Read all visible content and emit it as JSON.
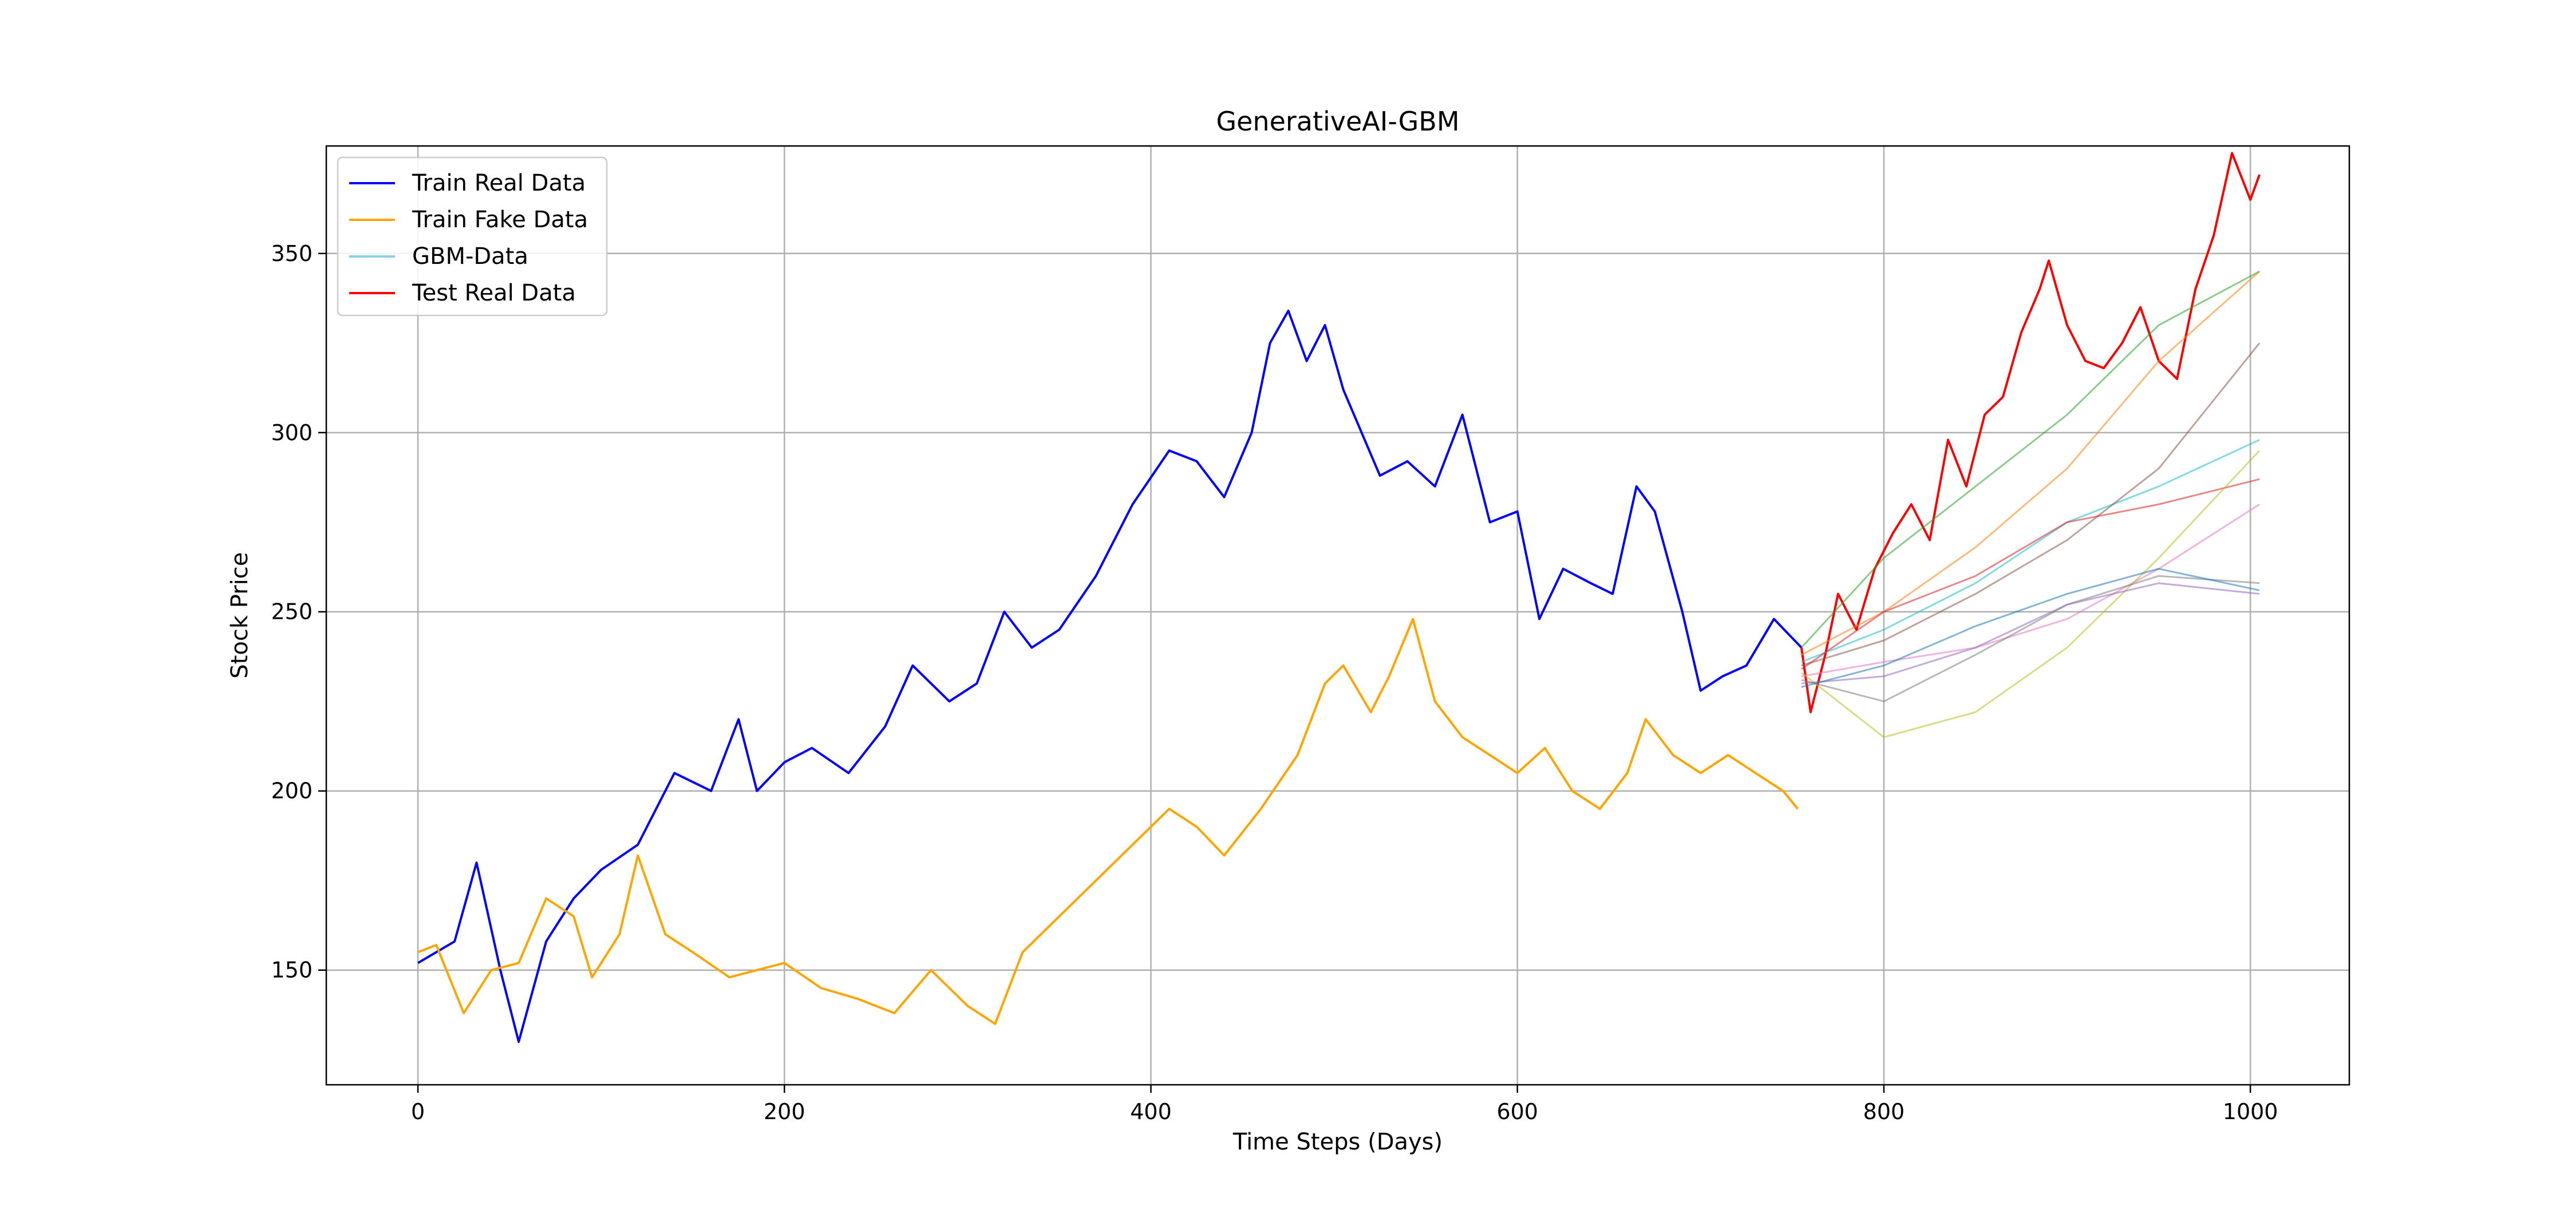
{
  "chart_data": {
    "type": "line",
    "title": "GenerativeAI-GBM",
    "xlabel": "Time Steps (Days)",
    "ylabel": "Stock Price",
    "xlim": [
      -50,
      1054
    ],
    "ylim": [
      118,
      380
    ],
    "xticks": [
      0,
      200,
      400,
      600,
      800,
      1000
    ],
    "yticks": [
      150,
      200,
      250,
      300,
      350
    ],
    "grid": true,
    "legend_position": "top-left",
    "legend": [
      {
        "label": "Train Real Data",
        "color": "#0000ff"
      },
      {
        "label": "Train Fake Data",
        "color": "#ffa500"
      },
      {
        "label": "GBM-Data",
        "color": "#87ceeb"
      },
      {
        "label": "Test Real Data",
        "color": "#ff0000"
      }
    ],
    "series": [
      {
        "name": "Train Real Data",
        "color": "#0000ff",
        "x": [
          0,
          20,
          32,
          45,
          55,
          70,
          85,
          100,
          120,
          140,
          160,
          175,
          185,
          200,
          215,
          235,
          255,
          270,
          290,
          305,
          320,
          335,
          350,
          370,
          390,
          410,
          425,
          440,
          455,
          465,
          475,
          485,
          495,
          505,
          515,
          525,
          540,
          555,
          570,
          585,
          600,
          612,
          625,
          640,
          652,
          665,
          675,
          690,
          700,
          712,
          725,
          740,
          755
        ],
        "y": [
          152,
          158,
          180,
          150,
          130,
          158,
          170,
          178,
          185,
          205,
          200,
          220,
          200,
          208,
          212,
          205,
          218,
          235,
          225,
          230,
          250,
          240,
          245,
          260,
          280,
          295,
          292,
          282,
          300,
          325,
          334,
          320,
          330,
          312,
          300,
          288,
          292,
          285,
          305,
          275,
          278,
          248,
          262,
          258,
          255,
          285,
          278,
          250,
          228,
          232,
          235,
          248,
          240
        ]
      },
      {
        "name": "Train Fake Data",
        "color": "#ffa500",
        "x": [
          0,
          10,
          25,
          40,
          55,
          70,
          85,
          95,
          110,
          120,
          135,
          150,
          170,
          185,
          200,
          220,
          240,
          260,
          280,
          300,
          315,
          330,
          350,
          370,
          390,
          410,
          425,
          440,
          460,
          480,
          495,
          505,
          520,
          530,
          543,
          555,
          570,
          585,
          600,
          615,
          630,
          645,
          660,
          670,
          685,
          700,
          715,
          730,
          745,
          753
        ],
        "y": [
          155,
          157,
          138,
          150,
          152,
          170,
          165,
          148,
          160,
          182,
          160,
          155,
          148,
          150,
          152,
          145,
          142,
          138,
          150,
          140,
          135,
          155,
          165,
          175,
          185,
          195,
          190,
          182,
          195,
          210,
          230,
          235,
          222,
          232,
          248,
          225,
          215,
          210,
          205,
          212,
          200,
          195,
          205,
          220,
          210,
          205,
          210,
          205,
          200,
          195
        ]
      },
      {
        "name": "Test Real Data",
        "color": "#ff0000",
        "x": [
          755,
          760,
          768,
          775,
          785,
          795,
          805,
          815,
          825,
          835,
          845,
          855,
          865,
          875,
          885,
          890,
          900,
          910,
          920,
          930,
          940,
          950,
          960,
          970,
          980,
          990,
          1000,
          1005
        ],
        "y": [
          240,
          222,
          238,
          255,
          245,
          262,
          272,
          280,
          270,
          298,
          285,
          305,
          310,
          328,
          340,
          348,
          330,
          320,
          318,
          325,
          335,
          320,
          315,
          340,
          355,
          378,
          365,
          372
        ]
      },
      {
        "name": "GBM-Data 1",
        "color": "#2ca02c",
        "x": [
          755,
          800,
          850,
          900,
          950,
          1005
        ],
        "y": [
          240,
          265,
          285,
          305,
          330,
          345
        ]
      },
      {
        "name": "GBM-Data 2",
        "color": "#ff7f0e",
        "x": [
          755,
          800,
          850,
          900,
          950,
          1005
        ],
        "y": [
          238,
          250,
          268,
          290,
          320,
          345
        ]
      },
      {
        "name": "GBM-Data 3",
        "color": "#17becf",
        "x": [
          755,
          800,
          850,
          900,
          950,
          1005
        ],
        "y": [
          236,
          245,
          258,
          275,
          285,
          298
        ]
      },
      {
        "name": "GBM-Data 4",
        "color": "#8c564b",
        "x": [
          755,
          800,
          850,
          900,
          950,
          1005
        ],
        "y": [
          235,
          242,
          255,
          270,
          290,
          325
        ]
      },
      {
        "name": "GBM-Data 5",
        "color": "#d62728",
        "x": [
          755,
          800,
          850,
          900,
          950,
          1005
        ],
        "y": [
          234,
          250,
          260,
          275,
          280,
          287
        ]
      },
      {
        "name": "GBM-Data 6",
        "color": "#bcbd22",
        "x": [
          755,
          800,
          850,
          900,
          950,
          1005
        ],
        "y": [
          233,
          215,
          222,
          240,
          265,
          295
        ]
      },
      {
        "name": "GBM-Data 7",
        "color": "#e377c2",
        "x": [
          755,
          800,
          850,
          900,
          950,
          1005
        ],
        "y": [
          232,
          236,
          240,
          248,
          262,
          280
        ]
      },
      {
        "name": "GBM-Data 8",
        "color": "#7f7f7f",
        "x": [
          755,
          800,
          850,
          900,
          950,
          1005
        ],
        "y": [
          231,
          225,
          238,
          252,
          260,
          258
        ]
      },
      {
        "name": "GBM-Data 9",
        "color": "#9467bd",
        "x": [
          755,
          800,
          850,
          900,
          950,
          1005
        ],
        "y": [
          230,
          232,
          240,
          252,
          258,
          255
        ]
      },
      {
        "name": "GBM-Data 10",
        "color": "#1f77b4",
        "x": [
          755,
          800,
          850,
          900,
          950,
          1005
        ],
        "y": [
          229,
          235,
          246,
          255,
          262,
          256
        ]
      }
    ]
  }
}
